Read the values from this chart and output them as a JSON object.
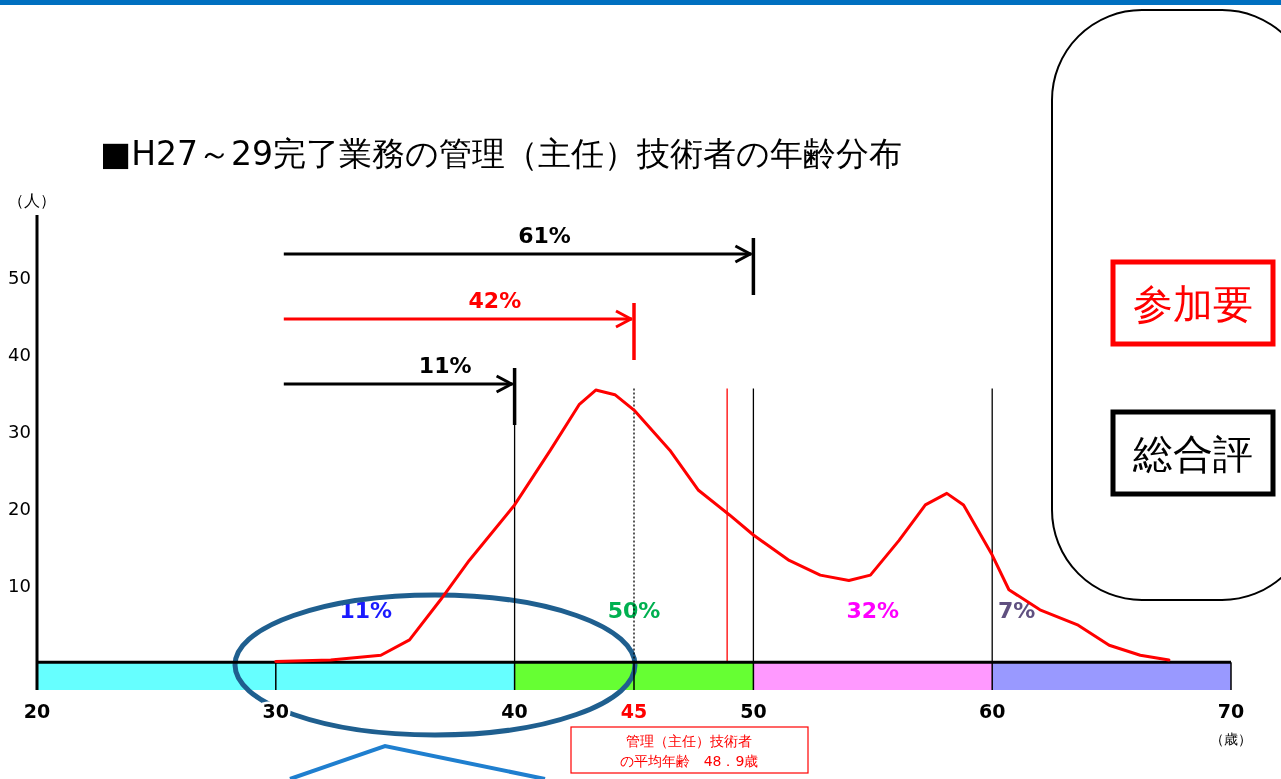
{
  "chart_data": {
    "type": "line",
    "title": "■H27～29完了業務の管理（主任）技術者の年齢分布",
    "ylabel": "（人）",
    "xlabel": "（歳）",
    "x": [
      30,
      32.3,
      34.4,
      35.6,
      36.9,
      38.1,
      40,
      41.5,
      42.7,
      43.4,
      44.2,
      45,
      46.5,
      47.7,
      49,
      50,
      51.5,
      52.8,
      54,
      54.9,
      56.1,
      57.2,
      58.1,
      58.8,
      60,
      60.7,
      62,
      63.6,
      64.9,
      66.2,
      67.4
    ],
    "series": [
      {
        "color": "#ff0000",
        "values": [
          0.1,
          0.3,
          0.9,
          2.9,
          8.1,
          13.2,
          20.4,
          27.5,
          33.4,
          35.3,
          34.7,
          32.7,
          27.5,
          22.3,
          19.1,
          16.5,
          13.2,
          11.3,
          10.6,
          11.3,
          15.8,
          20.4,
          21.9,
          20.4,
          13.9,
          9.4,
          6.8,
          4.8,
          2.2,
          0.9,
          0.3
        ]
      }
    ],
    "xlim": [
      20,
      70
    ],
    "xticks": [
      20,
      30,
      40,
      45,
      50,
      60,
      70
    ],
    "ylim": [
      -3.6,
      58
    ],
    "yticks": [
      10,
      20,
      30,
      40,
      50
    ],
    "marker": "none",
    "line_style": "solid",
    "bands": [
      {
        "axis": "x",
        "from": 20,
        "to": 40,
        "label": "11%",
        "color": "#66ffff"
      },
      {
        "axis": "x",
        "from": 40,
        "to": 50,
        "label": "50%",
        "color": "#66ff33"
      },
      {
        "axis": "x",
        "from": 50,
        "to": 60,
        "label": "32%",
        "color": "#ff99ff"
      },
      {
        "axis": "x",
        "from": 60,
        "to": 70,
        "label": "7%",
        "color": "#9999ff"
      }
    ],
    "ref_lines": [
      {
        "axis": "x",
        "value": 40,
        "color": "#000000",
        "line_style": "solid"
      },
      {
        "axis": "x",
        "value": 45,
        "color": "#000000",
        "line_style": "dotted"
      },
      {
        "axis": "x",
        "value": 48.9,
        "color": "#ff0000",
        "line_style": "solid"
      },
      {
        "axis": "x",
        "value": 50,
        "color": "#000000",
        "line_style": "solid"
      },
      {
        "axis": "x",
        "value": 60,
        "color": "#000000",
        "line_style": "solid"
      }
    ],
    "annotations": [
      "61%",
      "42%",
      "11%",
      "管理（主任）技術者の平均年齢　48．9歳",
      "参加要",
      "総合評"
    ]
  }
}
